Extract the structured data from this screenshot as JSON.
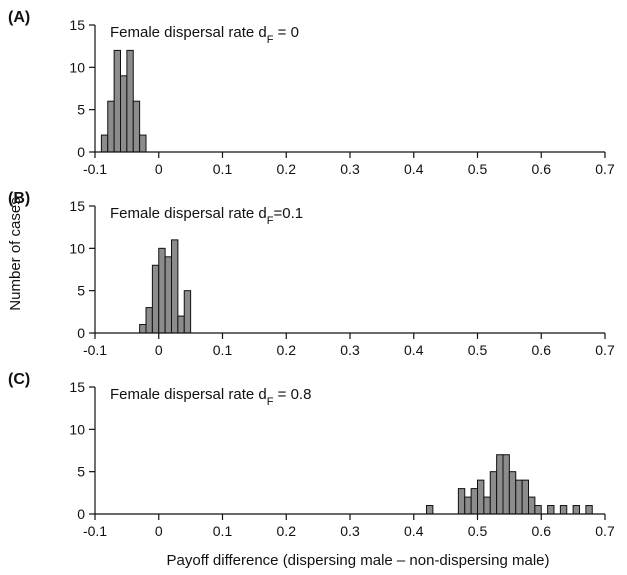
{
  "figure": {
    "ylabel": "Number of cases",
    "xlabel": "Payoff difference (dispersing male – non-dispersing male)"
  },
  "chart_data": [
    {
      "type": "histogram",
      "panel_label": "(A)",
      "title_main": "Female dispersal rate d",
      "title_sub": "F",
      "title_tail": " = 0",
      "bar_color": "#8c8c8c",
      "xlim": [
        -0.1,
        0.7
      ],
      "ylim": [
        0,
        15
      ],
      "xticks": [
        "-0.1",
        "0",
        "0.1",
        "0.2",
        "0.3",
        "0.4",
        "0.5",
        "0.6",
        "0.7"
      ],
      "xtick_values": [
        -0.1,
        0,
        0.1,
        0.2,
        0.3,
        0.4,
        0.5,
        0.6,
        0.7
      ],
      "yticks": [
        "0",
        "5",
        "10",
        "15"
      ],
      "ytick_values": [
        0,
        5,
        10,
        15
      ],
      "bin_width": 0.01,
      "bins": [
        [
          -0.09,
          2
        ],
        [
          -0.08,
          6
        ],
        [
          -0.07,
          12
        ],
        [
          -0.06,
          9
        ],
        [
          -0.05,
          12
        ],
        [
          -0.04,
          6
        ],
        [
          -0.03,
          2
        ]
      ]
    },
    {
      "type": "histogram",
      "panel_label": "(B)",
      "title_main": "Female dispersal rate d",
      "title_sub": "F",
      "title_tail": "=0.1",
      "bar_color": "#8c8c8c",
      "xlim": [
        -0.1,
        0.7
      ],
      "ylim": [
        0,
        15
      ],
      "xticks": [
        "-0.1",
        "0",
        "0.1",
        "0.2",
        "0.3",
        "0.4",
        "0.5",
        "0.6",
        "0.7"
      ],
      "xtick_values": [
        -0.1,
        0,
        0.1,
        0.2,
        0.3,
        0.4,
        0.5,
        0.6,
        0.7
      ],
      "yticks": [
        "0",
        "5",
        "10",
        "15"
      ],
      "ytick_values": [
        0,
        5,
        10,
        15
      ],
      "bin_width": 0.01,
      "bins": [
        [
          -0.03,
          1
        ],
        [
          -0.02,
          3
        ],
        [
          -0.01,
          8
        ],
        [
          0.0,
          10
        ],
        [
          0.01,
          9
        ],
        [
          0.02,
          11
        ],
        [
          0.03,
          2
        ],
        [
          0.04,
          5
        ]
      ]
    },
    {
      "type": "histogram",
      "panel_label": "(C)",
      "title_main": "Female dispersal rate d",
      "title_sub": "F",
      "title_tail": " = 0.8",
      "bar_color": "#8c8c8c",
      "xlim": [
        -0.1,
        0.7
      ],
      "ylim": [
        0,
        15
      ],
      "xticks": [
        "-0.1",
        "0",
        "0.1",
        "0.2",
        "0.3",
        "0.4",
        "0.5",
        "0.6",
        "0.7"
      ],
      "xtick_values": [
        -0.1,
        0,
        0.1,
        0.2,
        0.3,
        0.4,
        0.5,
        0.6,
        0.7
      ],
      "yticks": [
        "0",
        "5",
        "10",
        "15"
      ],
      "ytick_values": [
        0,
        5,
        10,
        15
      ],
      "bin_width": 0.01,
      "bins": [
        [
          0.42,
          1
        ],
        [
          0.47,
          3
        ],
        [
          0.48,
          2
        ],
        [
          0.49,
          3
        ],
        [
          0.5,
          4
        ],
        [
          0.51,
          2
        ],
        [
          0.52,
          5
        ],
        [
          0.53,
          7
        ],
        [
          0.54,
          7
        ],
        [
          0.55,
          5
        ],
        [
          0.56,
          4
        ],
        [
          0.57,
          4
        ],
        [
          0.58,
          2
        ],
        [
          0.59,
          1
        ],
        [
          0.61,
          1
        ],
        [
          0.63,
          1
        ],
        [
          0.65,
          1
        ],
        [
          0.67,
          1
        ]
      ]
    }
  ]
}
